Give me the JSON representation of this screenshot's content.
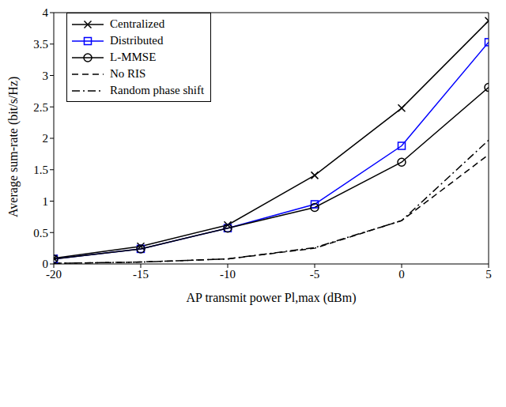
{
  "chart_data": {
    "type": "line",
    "x_label": "AP transmit power Pl,max (dBm)",
    "y_label": "Average sum-rate (bit/s/Hz)",
    "x": [
      -20,
      -15,
      -10,
      -5,
      0,
      5
    ],
    "xlim": [
      -20,
      5
    ],
    "xticks": [
      -20,
      -15,
      -10,
      -5,
      0,
      5
    ],
    "ylim": [
      0,
      4
    ],
    "yticks": [
      0,
      0.5,
      1,
      1.5,
      2,
      2.5,
      3,
      3.5,
      4
    ],
    "grid": false,
    "legend": "upper left",
    "series": [
      {
        "name": "Centralized",
        "color": "#000000",
        "marker": "x",
        "line_style": "solid",
        "values": [
          0.09,
          0.28,
          0.62,
          1.41,
          2.48,
          3.87
        ]
      },
      {
        "name": "Distributed",
        "color": "#0000ff",
        "marker": "square",
        "line_style": "solid",
        "values": [
          0.08,
          0.24,
          0.57,
          0.95,
          1.88,
          3.53
        ]
      },
      {
        "name": "L-MMSE",
        "color": "#000000",
        "marker": "circle",
        "line_style": "solid",
        "values": [
          0.08,
          0.24,
          0.57,
          0.9,
          1.62,
          2.81
        ]
      },
      {
        "name": "No RIS",
        "color": "#000000",
        "marker": "none",
        "line_style": "dashed",
        "values": [
          0.01,
          0.03,
          0.08,
          0.25,
          0.69,
          1.74
        ]
      },
      {
        "name": "Random phase shift",
        "color": "#000000",
        "marker": "none",
        "line_style": "dashdot",
        "values": [
          0.01,
          0.03,
          0.08,
          0.26,
          0.69,
          1.97
        ]
      }
    ]
  }
}
